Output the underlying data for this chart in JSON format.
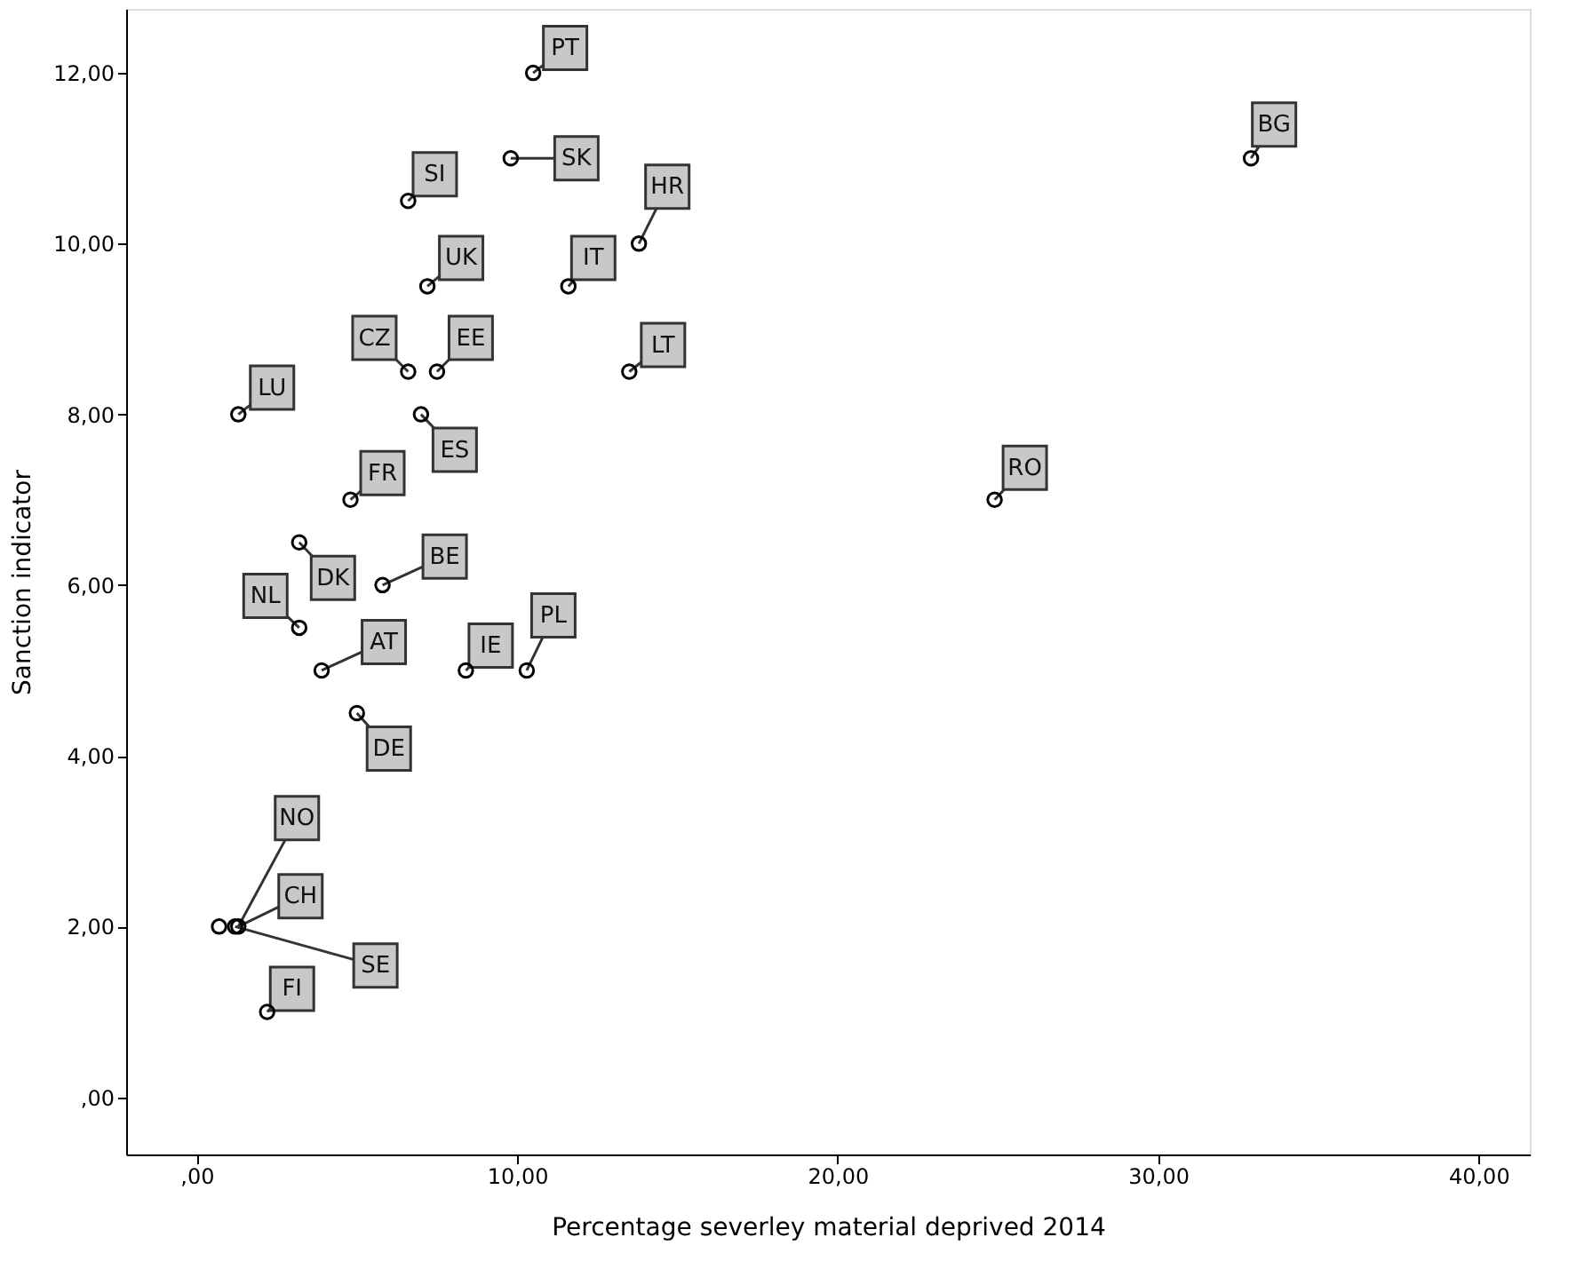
{
  "chart_data": {
    "type": "scatter",
    "xlabel": "Percentage severley material deprived 2014",
    "ylabel": "Sanction indicator",
    "x": [
      10.5,
      9.8,
      6.6,
      13.8,
      7.2,
      11.6,
      6.6,
      7.5,
      13.5,
      1.3,
      7.0,
      4.8,
      3.2,
      5.8,
      3.2,
      3.9,
      8.4,
      10.3,
      5.0,
      0.7,
      1.3,
      1.2,
      2.2,
      32.9,
      24.9
    ],
    "series": [
      {
        "color": "#000000",
        "values": [
          12,
          11,
          10.5,
          10,
          9.5,
          9.5,
          8.5,
          8.5,
          8.5,
          8,
          8,
          7,
          6.5,
          6,
          5.5,
          5,
          5,
          5,
          4.5,
          2,
          2,
          2,
          1,
          11,
          7
        ]
      }
    ],
    "annotations": [
      {
        "text": "PT",
        "x": 10.5,
        "y": 12
      },
      {
        "text": "SK",
        "x": 9.8,
        "y": 11
      },
      {
        "text": "SI",
        "x": 6.6,
        "y": 10.5
      },
      {
        "text": "HR",
        "x": 13.8,
        "y": 10
      },
      {
        "text": "UK",
        "x": 7.2,
        "y": 9.5
      },
      {
        "text": "IT",
        "x": 11.6,
        "y": 9.5
      },
      {
        "text": "CZ",
        "x": 6.6,
        "y": 8.5
      },
      {
        "text": "EE",
        "x": 7.5,
        "y": 8.5
      },
      {
        "text": "LT",
        "x": 13.5,
        "y": 8.5
      },
      {
        "text": "LU",
        "x": 1.3,
        "y": 8
      },
      {
        "text": "ES",
        "x": 7.0,
        "y": 8
      },
      {
        "text": "FR",
        "x": 4.8,
        "y": 7
      },
      {
        "text": "DK",
        "x": 3.2,
        "y": 6.5
      },
      {
        "text": "BE",
        "x": 5.8,
        "y": 6
      },
      {
        "text": "NL",
        "x": 3.2,
        "y": 5.5
      },
      {
        "text": "AT",
        "x": 3.9,
        "y": 5
      },
      {
        "text": "IE",
        "x": 8.4,
        "y": 5
      },
      {
        "text": "PL",
        "x": 10.3,
        "y": 5
      },
      {
        "text": "DE",
        "x": 5.0,
        "y": 4.5
      },
      {
        "text": "NO",
        "x": 1.3,
        "y": 2
      },
      {
        "text": "CH",
        "x": 1.3,
        "y": 2
      },
      {
        "text": "SE",
        "x": 1.2,
        "y": 2
      },
      {
        "text": "FI",
        "x": 2.2,
        "y": 1
      },
      {
        "text": "BG",
        "x": 32.9,
        "y": 11
      },
      {
        "text": "RO",
        "x": 24.9,
        "y": 7
      }
    ],
    "xlim": [
      -2.2,
      41.6
    ],
    "ylim": [
      -0.67,
      12.75
    ],
    "xticks": [
      {
        "value": 0,
        "label": ",00"
      },
      {
        "value": 10,
        "label": "10,00"
      },
      {
        "value": 20,
        "label": "20,00"
      },
      {
        "value": 30,
        "label": "30,00"
      },
      {
        "value": 40,
        "label": "40,00"
      }
    ],
    "yticks": [
      {
        "value": 0,
        "label": ",00"
      },
      {
        "value": 2,
        "label": "2,00"
      },
      {
        "value": 4,
        "label": "4,00"
      },
      {
        "value": 6,
        "label": "6,00"
      },
      {
        "value": 8,
        "label": "8,00"
      },
      {
        "value": 10,
        "label": "10,00"
      },
      {
        "value": 12,
        "label": "12,00"
      }
    ],
    "marker": "circle",
    "grid": false
  }
}
